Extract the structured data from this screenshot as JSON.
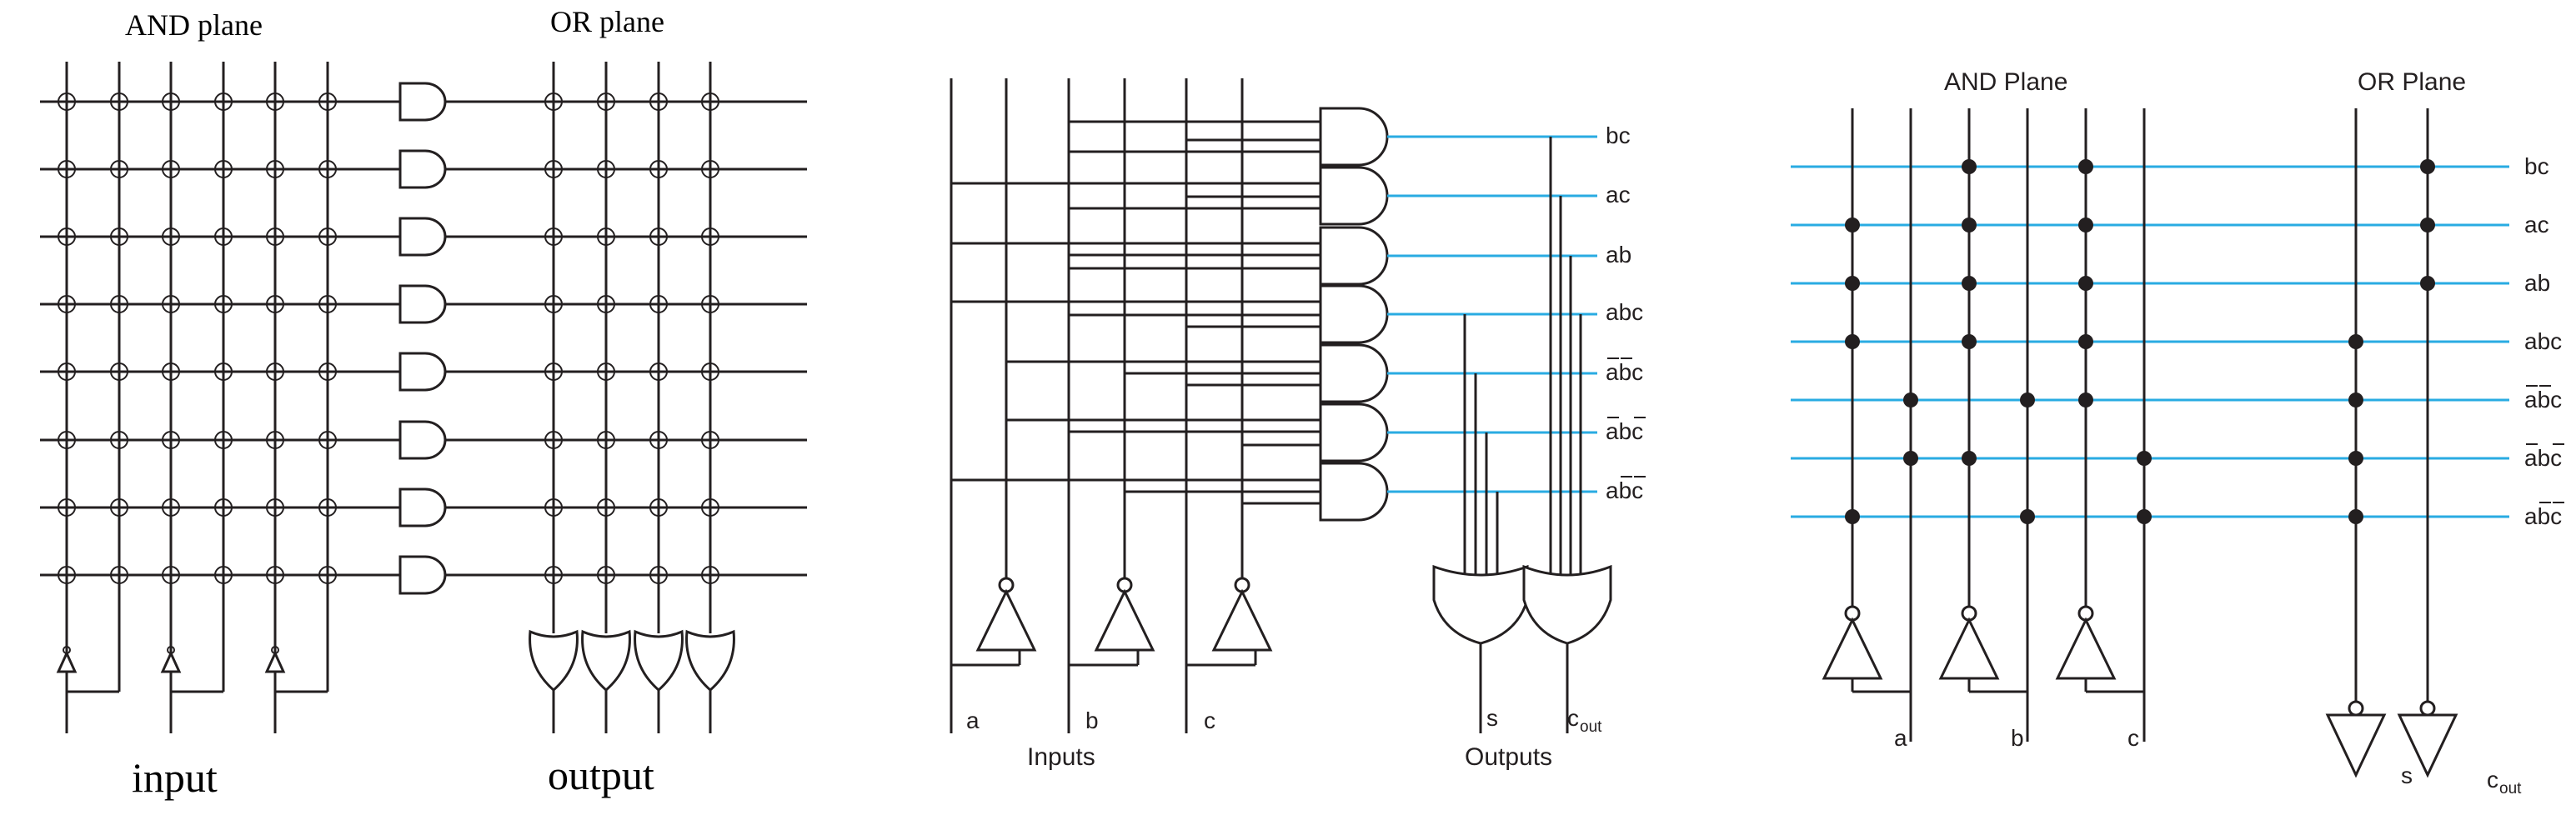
{
  "panel1": {
    "and_plane_label": "AND plane",
    "or_plane_label": "OR plane",
    "input_label": "input",
    "output_label": "output"
  },
  "panel2": {
    "term_labels": [
      "bc",
      "ac",
      "ab",
      "abc",
      "abc",
      "abc",
      "abc"
    ],
    "input_labels": [
      "a",
      "b",
      "c"
    ],
    "inputs_caption": "Inputs",
    "outputs_caption": "Outputs",
    "output_s": "s",
    "output_cout_base": "c",
    "output_cout_sub": "out"
  },
  "panel3": {
    "and_plane_label": "AND Plane",
    "or_plane_label": "OR Plane",
    "term_labels": [
      "bc",
      "ac",
      "ab",
      "abc",
      "abc",
      "abc",
      "abc"
    ],
    "input_labels": [
      "a",
      "b",
      "c"
    ],
    "output_s": "s",
    "output_cout_base": "c",
    "output_cout_sub": "out"
  },
  "colors": {
    "wire": "#231f20",
    "term_line": "#29abe2"
  }
}
